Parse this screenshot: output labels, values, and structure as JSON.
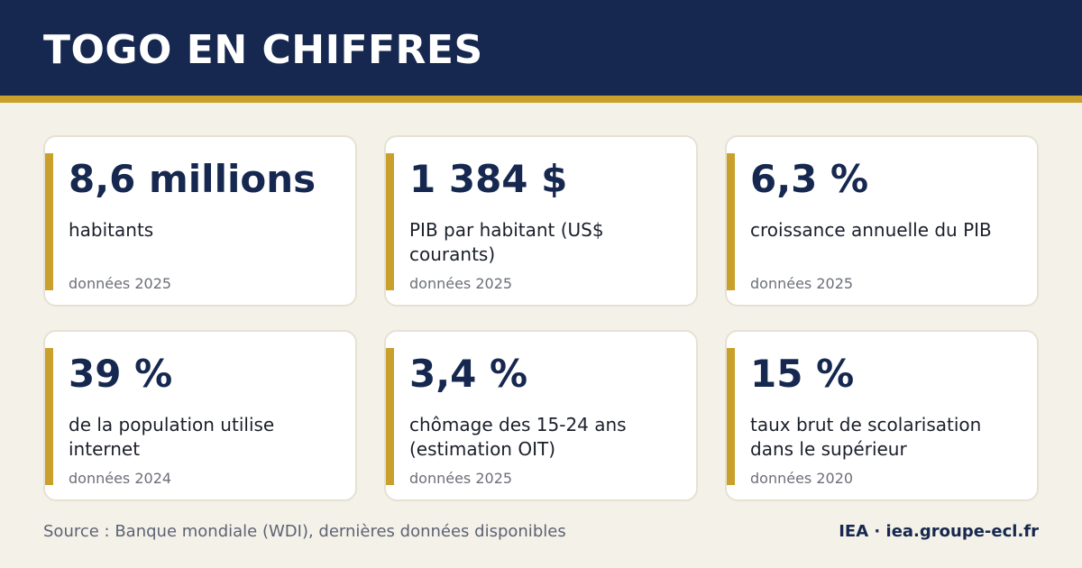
{
  "header": {
    "title": "TOGO EN CHIFFRES"
  },
  "colors": {
    "navy": "#16284f",
    "gold": "#c9a02c",
    "background": "#f4f1e8",
    "card": "#ffffff"
  },
  "cards": [
    {
      "value": "8,6 millions",
      "label": "habitants",
      "year": "données 2025"
    },
    {
      "value": "1 384 $",
      "label": "PIB par habitant (US$ courants)",
      "year": "données 2025"
    },
    {
      "value": "6,3 %",
      "label": "croissance annuelle du PIB",
      "year": "données 2025"
    },
    {
      "value": "39 %",
      "label": "de la population utilise internet",
      "year": "données 2024"
    },
    {
      "value": "3,4 %",
      "label": "chômage des 15-24 ans (estimation OIT)",
      "year": "données 2025"
    },
    {
      "value": "15 %",
      "label": "taux brut de scolarisation dans le supérieur",
      "year": "données 2020"
    }
  ],
  "footer": {
    "source": "Source : Banque mondiale (WDI), dernières données disponibles",
    "brand": "IEA · iea.groupe-ecl.fr"
  }
}
